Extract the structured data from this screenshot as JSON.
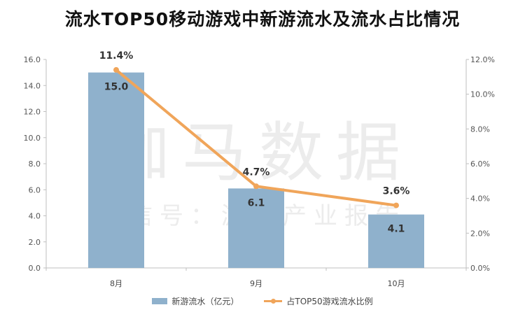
{
  "chart_data": {
    "type": "bar",
    "title": "流水TOP50移动游戏中新游流水及流水占比情况",
    "categories": [
      "8月",
      "9月",
      "10月"
    ],
    "series": [
      {
        "name": "新游流水（亿元）",
        "type": "bar",
        "axis": "left",
        "values": [
          15.0,
          6.1,
          4.1
        ],
        "labels": [
          "15.0",
          "6.1",
          "4.1"
        ],
        "color": "#8fb1cc"
      },
      {
        "name": "占TOP50游戏流水比例",
        "type": "line",
        "axis": "right",
        "values": [
          11.4,
          4.7,
          3.6
        ],
        "labels": [
          "11.4%",
          "4.7%",
          "3.6%"
        ],
        "color": "#f0a55a"
      }
    ],
    "y_left": {
      "ylim": [
        0,
        16
      ],
      "ticks": [
        "0.0",
        "2.0",
        "4.0",
        "6.0",
        "8.0",
        "10.0",
        "12.0",
        "14.0",
        "16.0"
      ]
    },
    "y_right": {
      "ylim": [
        0,
        12
      ],
      "ticks": [
        "0.0%",
        "2.0%",
        "4.0%",
        "6.0%",
        "8.0%",
        "10.0%",
        "12.0%"
      ]
    },
    "grid": false,
    "legend_position": "bottom"
  },
  "watermark": {
    "line1": "伽马数据",
    "line2": "微信号：游戏产业报告"
  }
}
